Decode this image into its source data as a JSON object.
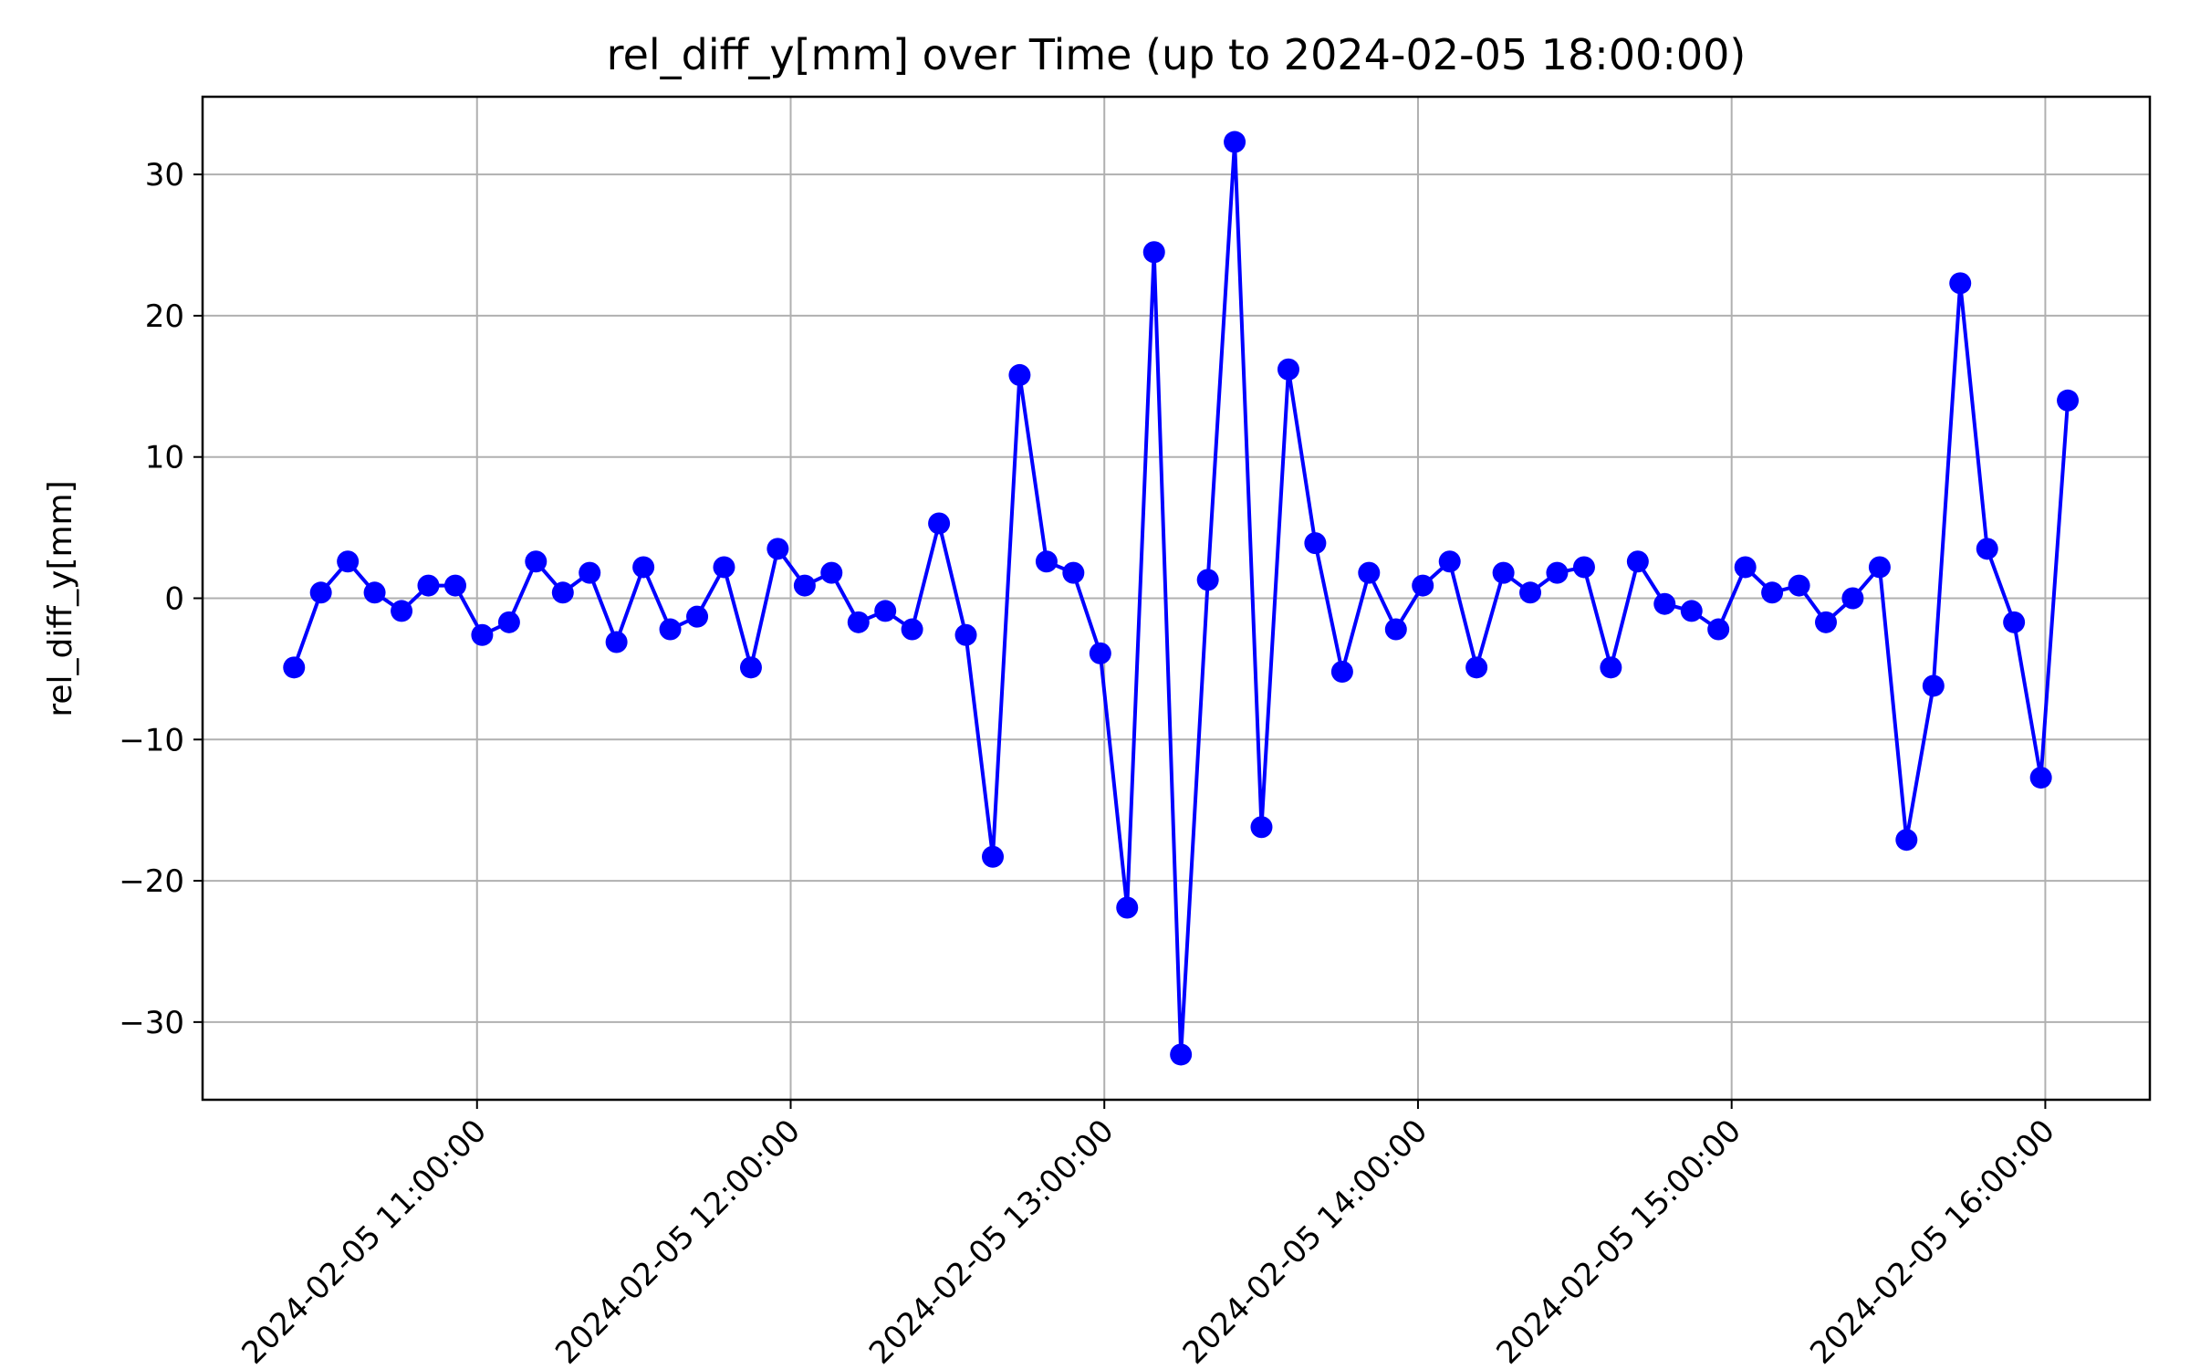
{
  "chart_data": {
    "type": "line",
    "title": "rel_diff_y[mm] over Time (up to 2024-02-05 18:00:00)",
    "xlabel": "",
    "ylabel": "rel_diff_y[mm]",
    "x_axis_type": "datetime",
    "xlim": [
      "2024-02-05 10:07:30",
      "2024-02-05 16:20:00"
    ],
    "ylim": [
      -35.5,
      35.5
    ],
    "x_ticks": [
      "2024-02-05 11:00:00",
      "2024-02-05 12:00:00",
      "2024-02-05 13:00:00",
      "2024-02-05 14:00:00",
      "2024-02-05 15:00:00",
      "2024-02-05 16:00:00"
    ],
    "x_tick_labels": [
      "2024-02-05 11:00:00",
      "2024-02-05 12:00:00",
      "2024-02-05 13:00:00",
      "2024-02-05 14:00:00",
      "2024-02-05 15:00:00",
      "2024-02-05 16:00:00"
    ],
    "y_ticks": [
      30,
      20,
      10,
      0,
      -10,
      -20,
      -30
    ],
    "y_tick_labels": [
      "30",
      "20",
      "10",
      "0",
      "−10",
      "−20",
      "−30"
    ],
    "grid": true,
    "legend": "none",
    "marker": "circle",
    "series_color": "#0000ff",
    "grid_color": "#b0b0b0",
    "x": [
      "2024-02-05 10:25:00",
      "2024-02-05 10:30:08",
      "2024-02-05 10:35:17",
      "2024-02-05 10:40:25",
      "2024-02-05 10:45:34",
      "2024-02-05 10:50:42",
      "2024-02-05 10:55:51",
      "2024-02-05 11:00:59",
      "2024-02-05 11:06:08",
      "2024-02-05 11:11:16",
      "2024-02-05 11:16:25",
      "2024-02-05 11:21:33",
      "2024-02-05 11:26:41",
      "2024-02-05 11:31:50",
      "2024-02-05 11:36:58",
      "2024-02-05 11:42:07",
      "2024-02-05 11:47:15",
      "2024-02-05 11:52:24",
      "2024-02-05 11:57:32",
      "2024-02-05 12:02:41",
      "2024-02-05 12:07:49",
      "2024-02-05 12:12:58",
      "2024-02-05 12:18:06",
      "2024-02-05 12:23:14",
      "2024-02-05 12:28:23",
      "2024-02-05 12:33:31",
      "2024-02-05 12:38:40",
      "2024-02-05 12:43:48",
      "2024-02-05 12:48:57",
      "2024-02-05 12:54:05",
      "2024-02-05 12:59:14",
      "2024-02-05 13:04:22",
      "2024-02-05 13:09:31",
      "2024-02-05 13:14:39",
      "2024-02-05 13:19:48",
      "2024-02-05 13:24:56",
      "2024-02-05 13:30:04",
      "2024-02-05 13:35:13",
      "2024-02-05 13:40:21",
      "2024-02-05 13:45:30",
      "2024-02-05 13:50:38",
      "2024-02-05 13:55:47",
      "2024-02-05 14:00:55",
      "2024-02-05 14:06:04",
      "2024-02-05 14:11:12",
      "2024-02-05 14:16:21",
      "2024-02-05 14:21:29",
      "2024-02-05 14:26:37",
      "2024-02-05 14:31:46",
      "2024-02-05 14:36:54",
      "2024-02-05 14:42:03",
      "2024-02-05 14:47:11",
      "2024-02-05 14:52:20",
      "2024-02-05 14:57:28",
      "2024-02-05 15:02:37",
      "2024-02-05 15:07:45",
      "2024-02-05 15:12:54",
      "2024-02-05 15:18:02",
      "2024-02-05 15:23:10",
      "2024-02-05 15:28:19",
      "2024-02-05 15:33:27",
      "2024-02-05 15:38:36",
      "2024-02-05 15:43:44",
      "2024-02-05 15:48:53",
      "2024-02-05 15:54:01",
      "2024-02-05 15:59:10",
      "2024-02-05 16:04:18"
    ],
    "values": [
      -4.9,
      0.4,
      2.6,
      0.4,
      -0.9,
      0.9,
      0.9,
      -2.6,
      -1.7,
      2.6,
      0.4,
      1.8,
      -3.1,
      2.2,
      -2.2,
      -1.3,
      2.2,
      -4.9,
      3.5,
      0.9,
      1.8,
      -1.7,
      -0.9,
      -2.2,
      5.3,
      -2.6,
      -18.3,
      15.8,
      2.6,
      1.8,
      -3.9,
      -21.9,
      24.5,
      -32.3,
      1.3,
      32.3,
      -16.2,
      16.2,
      3.9,
      -5.2,
      1.8,
      -2.2,
      0.9,
      2.6,
      -4.9,
      1.8,
      0.4,
      1.8,
      2.2,
      -4.9,
      2.6,
      -0.4,
      -0.9,
      -2.2,
      2.2,
      0.4,
      0.9,
      -1.7,
      0.0,
      2.2,
      -17.1,
      -6.2,
      22.3,
      3.5,
      -1.7,
      -12.7,
      14.0
    ]
  }
}
